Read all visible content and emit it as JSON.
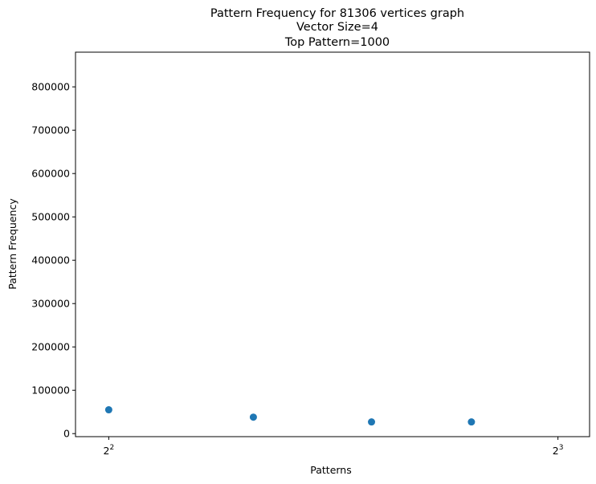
{
  "chart_data": {
    "type": "scatter",
    "title_lines": [
      "Pattern Frequency for 81306 vertices graph",
      "Vector Size=4",
      "Top Pattern=1000"
    ],
    "xlabel": "Patterns",
    "ylabel": "Pattern Frequency",
    "x_scale": "log2",
    "xlim": [
      3.8,
      8.4
    ],
    "ylim": [
      -7000,
      880000
    ],
    "x_ticks": [
      {
        "value": 4,
        "base": "2",
        "exp": "2"
      },
      {
        "value": 8,
        "base": "2",
        "exp": "3"
      }
    ],
    "y_ticks": [
      0,
      100000,
      200000,
      300000,
      400000,
      500000,
      600000,
      700000,
      800000
    ],
    "y_tick_labels": [
      "0",
      "100000",
      "200000",
      "300000",
      "400000",
      "500000",
      "600000",
      "700000",
      "800000"
    ],
    "points": [
      {
        "x": 4,
        "y": 55000
      },
      {
        "x": 5,
        "y": 38000
      },
      {
        "x": 6,
        "y": 27000
      },
      {
        "x": 7,
        "y": 27000
      }
    ],
    "marker_color": "#1f77b4",
    "grid": false
  }
}
